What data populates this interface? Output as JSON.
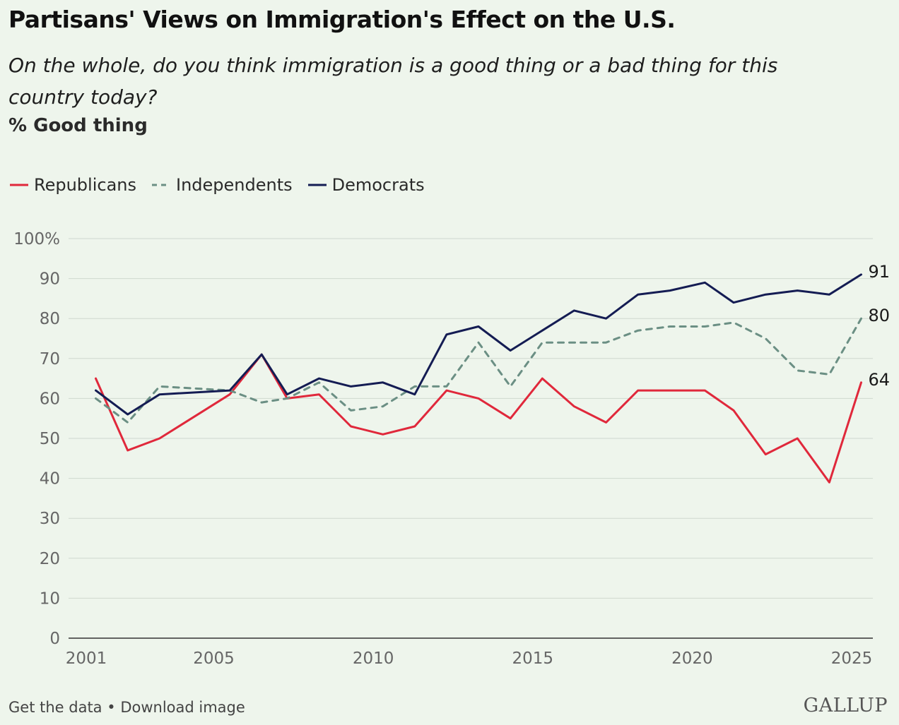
{
  "header": {
    "title": "Partisans' Views on Immigration's Effect on the U.S.",
    "subtitle": "On the whole, do you think immigration is a good thing or a bad thing for this country today?",
    "measure": "% Good thing"
  },
  "footer": {
    "get_data": "Get the data",
    "separator": "•",
    "download": "Download image",
    "brand": "GALLUP"
  },
  "chart_data": {
    "type": "line",
    "title": "Partisans' Views on Immigration's Effect on the U.S.",
    "ylabel": "",
    "xlabel": "",
    "xlim": [
      2001,
      2025.5
    ],
    "ylim": [
      0,
      100
    ],
    "x_ticks": [
      2001,
      2005,
      2010,
      2015,
      2020,
      2025
    ],
    "x_tick_labels": [
      "2001",
      "2005",
      "2010",
      "2015",
      "2020",
      "2025"
    ],
    "y_ticks": [
      0,
      10,
      20,
      30,
      40,
      50,
      60,
      70,
      80,
      90,
      100
    ],
    "y_tick_labels": [
      "0",
      "10",
      "20",
      "30",
      "40",
      "50",
      "60",
      "70",
      "80",
      "90",
      "100%"
    ],
    "grid": "horizontal",
    "legend_position": "top-left",
    "series": [
      {
        "name": "Republicans",
        "color": "#e0283b",
        "dash": "solid",
        "end_label": "64",
        "points": [
          [
            2001.3,
            65
          ],
          [
            2002.3,
            47
          ],
          [
            2003.3,
            50
          ],
          [
            2005.5,
            61
          ],
          [
            2006.5,
            71
          ],
          [
            2007.3,
            60
          ],
          [
            2008.3,
            61
          ],
          [
            2009.3,
            53
          ],
          [
            2010.3,
            51
          ],
          [
            2011.3,
            53
          ],
          [
            2012.3,
            62
          ],
          [
            2013.3,
            60
          ],
          [
            2014.3,
            55
          ],
          [
            2015.3,
            65
          ],
          [
            2016.3,
            58
          ],
          [
            2017.3,
            54
          ],
          [
            2018.3,
            62
          ],
          [
            2019.3,
            62
          ],
          [
            2020.4,
            62
          ],
          [
            2021.3,
            57
          ],
          [
            2022.3,
            46
          ],
          [
            2023.3,
            50
          ],
          [
            2024.3,
            39
          ],
          [
            2025.3,
            64
          ]
        ]
      },
      {
        "name": "Independents",
        "color": "#6b8f84",
        "dash": "dashed",
        "end_label": "80",
        "points": [
          [
            2001.3,
            60
          ],
          [
            2002.3,
            54
          ],
          [
            2003.3,
            63
          ],
          [
            2005.5,
            62
          ],
          [
            2006.5,
            59
          ],
          [
            2007.3,
            60
          ],
          [
            2008.3,
            64
          ],
          [
            2009.3,
            57
          ],
          [
            2010.3,
            58
          ],
          [
            2011.3,
            63
          ],
          [
            2012.3,
            63
          ],
          [
            2013.3,
            74
          ],
          [
            2014.3,
            63
          ],
          [
            2015.3,
            74
          ],
          [
            2016.3,
            74
          ],
          [
            2017.3,
            74
          ],
          [
            2018.3,
            77
          ],
          [
            2019.3,
            78
          ],
          [
            2020.4,
            78
          ],
          [
            2021.3,
            79
          ],
          [
            2022.3,
            75
          ],
          [
            2023.3,
            67
          ],
          [
            2024.3,
            66
          ],
          [
            2025.3,
            80
          ]
        ]
      },
      {
        "name": "Democrats",
        "color": "#141c53",
        "dash": "solid",
        "end_label": "91",
        "points": [
          [
            2001.3,
            62
          ],
          [
            2002.3,
            56
          ],
          [
            2003.3,
            61
          ],
          [
            2005.5,
            62
          ],
          [
            2006.5,
            71
          ],
          [
            2007.3,
            61
          ],
          [
            2008.3,
            65
          ],
          [
            2009.3,
            63
          ],
          [
            2010.3,
            64
          ],
          [
            2011.3,
            61
          ],
          [
            2012.3,
            76
          ],
          [
            2013.3,
            78
          ],
          [
            2014.3,
            72
          ],
          [
            2015.3,
            77
          ],
          [
            2016.3,
            82
          ],
          [
            2017.3,
            80
          ],
          [
            2018.3,
            86
          ],
          [
            2019.3,
            87
          ],
          [
            2020.4,
            89
          ],
          [
            2021.3,
            84
          ],
          [
            2022.3,
            86
          ],
          [
            2023.3,
            87
          ],
          [
            2024.3,
            86
          ],
          [
            2025.3,
            91
          ]
        ]
      }
    ]
  }
}
